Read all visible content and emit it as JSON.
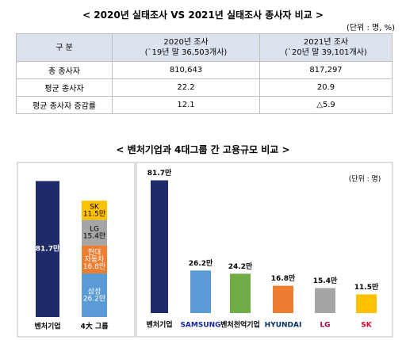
{
  "title1": "< 2020년 실태조사 VS 2021년 실태조사 종사자 비교 >",
  "unit1": "(단위 : 명, %)",
  "table": {
    "header": [
      [
        "구 분"
      ],
      [
        "2020년 조사",
        "(`19년 말 36,503개사)"
      ],
      [
        "2021년 조사",
        "(`20년 말 39,101개사)"
      ]
    ],
    "rows": [
      [
        "총 종사자",
        "810,643",
        "817,297"
      ],
      [
        "평균 종사자",
        "22.2",
        "20.9"
      ],
      [
        "평균 종사자 증감률",
        "12.1",
        "△5.9"
      ]
    ]
  },
  "title2": "< 벤처기업과 4대그룹 간 고용규모 비교 >",
  "left_chart": {
    "type": "stacked-bar",
    "categories": [
      "벤처기업",
      "4大 그룹"
    ],
    "venture": {
      "value": 81.7,
      "value_label": "81.7만",
      "color": "#1f2a6b"
    },
    "segments": [
      {
        "name_lines": [
          "삼성"
        ],
        "value": 26.2,
        "value_label": "26.2만",
        "color": "#5b9bd5"
      },
      {
        "name_lines": [
          "현대",
          "자동차"
        ],
        "value": 16.8,
        "value_label": "16.8만",
        "color": "#ed7d31"
      },
      {
        "name_lines": [
          "LG"
        ],
        "value": 15.4,
        "value_label": "15.4만",
        "color": "#a5a5a5"
      },
      {
        "name_lines": [
          "SK"
        ],
        "value": 11.5,
        "value_label": "11.5만",
        "color": "#ffc000"
      }
    ]
  },
  "right_chart": {
    "type": "bar",
    "unit": "(단위 : 명)",
    "categories": [
      "벤처기업",
      "SAMSUNG",
      "벤처천억기업",
      "HYUNDAI",
      "LG",
      "SK"
    ],
    "label_colors": [
      "#000000",
      "#1428a0",
      "#000000",
      "#002c5f",
      "#a50034",
      "#ea002c"
    ],
    "values": [
      81.7,
      26.2,
      24.2,
      16.8,
      15.4,
      11.5
    ],
    "value_labels": [
      "81.7만",
      "26.2만",
      "24.2만",
      "16.8만",
      "15.4만",
      "11.5만"
    ],
    "colors": [
      "#1f2a6b",
      "#5b9bd5",
      "#70ad47",
      "#ed7d31",
      "#a5a5a5",
      "#ffc000"
    ]
  }
}
